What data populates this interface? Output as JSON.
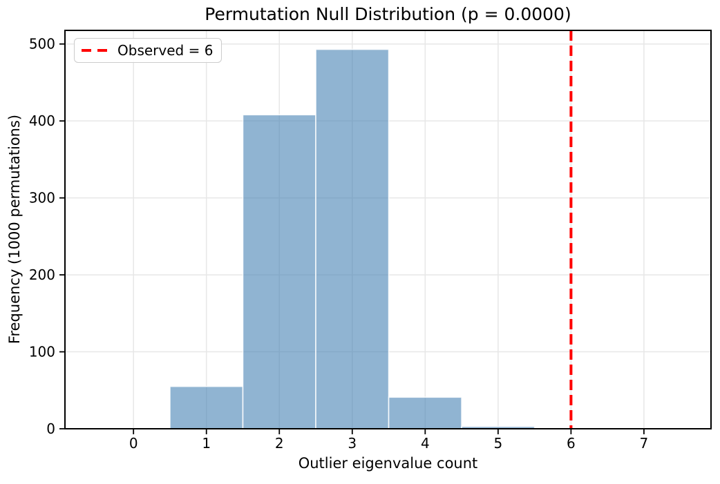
{
  "chart_data": {
    "type": "bar",
    "subtype": "histogram",
    "title": "Permutation Null Distribution (p = 0.0000)",
    "xlabel": "Outlier eigenvalue count",
    "ylabel": "Frequency (1000 permutations)",
    "categories": [
      1,
      2,
      3,
      4,
      5
    ],
    "values": [
      55,
      408,
      493,
      41,
      3
    ],
    "bin_width": 1,
    "xticks": [
      0,
      1,
      2,
      3,
      4,
      5,
      6,
      7
    ],
    "yticks": [
      0,
      100,
      200,
      300,
      400,
      500
    ],
    "xlim": [
      -0.94,
      7.92
    ],
    "ylim": [
      0,
      517.7
    ],
    "grid": true,
    "bar_color": "#4682b4",
    "bar_alpha": 0.6,
    "bar_edge_color": "#ffffff",
    "observed_line": {
      "x": 6,
      "color": "#ff0000",
      "style": "dashed",
      "linewidth": 4
    },
    "legend": {
      "position": "upper-left",
      "entries": [
        {
          "label": "Observed = 6",
          "marker": "dashed-line",
          "color": "#ff0000"
        }
      ]
    },
    "axis_color": "#000000",
    "grid_color": "#e7e7e7"
  }
}
